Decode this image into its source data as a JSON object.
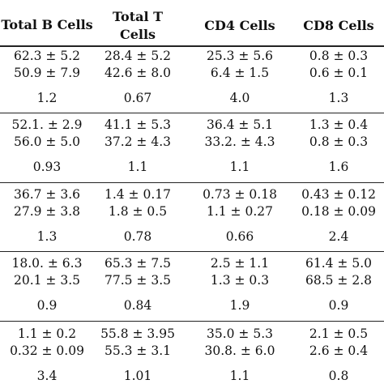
{
  "headers": [
    "Total B Cells",
    "Total T Cells",
    "CD4 Cells",
    "CD8 Cells"
  ],
  "groups": [
    {
      "row1": [
        "62.3 ± 5.2",
        "28.4 ± 5.2",
        "25.3 ± 5.6",
        "0.8 ± 0.3"
      ],
      "row2": [
        "50.9 ± 7.9",
        "42.6 ± 8.0",
        "6.4 ± 1.5",
        "0.6 ± 0.1"
      ],
      "ratio": [
        "1.2",
        "0.67",
        "4.0",
        "1.3"
      ]
    },
    {
      "row1": [
        "52.1. ± 2.9",
        "41.1 ± 5.3",
        "36.4 ± 5.1",
        "1.3 ± 0.4"
      ],
      "row2": [
        "56.0 ± 5.0",
        "37.2 ± 4.3",
        "33.2. ± 4.3",
        "0.8 ± 0.3"
      ],
      "ratio": [
        "0.93",
        "1.1",
        "1.1",
        "1.6"
      ]
    },
    {
      "row1": [
        "36.7 ± 3.6",
        "1.4 ± 0.17",
        "0.73 ± 0.18",
        "0.43 ± 0.12"
      ],
      "row2": [
        "27.9 ± 3.8",
        "1.8 ± 0.5",
        "1.1 ± 0.27",
        "0.18 ± 0.09"
      ],
      "ratio": [
        "1.3",
        "0.78",
        "0.66",
        "2.4"
      ]
    },
    {
      "row1": [
        "18.0. ± 6.3",
        "65.3 ± 7.5",
        "2.5 ± 1.1",
        "61.4 ± 5.0"
      ],
      "row2": [
        "20.1 ± 3.5",
        "77.5 ± 3.5",
        "1.3 ± 0.3",
        "68.5 ± 2.8"
      ],
      "ratio": [
        "0.9",
        "0.84",
        "1.9",
        "0.9"
      ]
    },
    {
      "row1": [
        "1.1 ± 0.2",
        "55.8 ± 3.95",
        "35.0 ± 5.3",
        "2.1 ± 0.5"
      ],
      "row2": [
        "0.32 ± 0.09",
        "55.3 ± 3.1",
        "30.8. ± 6.0",
        "2.6 ± 0.4"
      ],
      "ratio": [
        "3.4",
        "1.01",
        "1.1",
        "0.8"
      ]
    }
  ]
}
